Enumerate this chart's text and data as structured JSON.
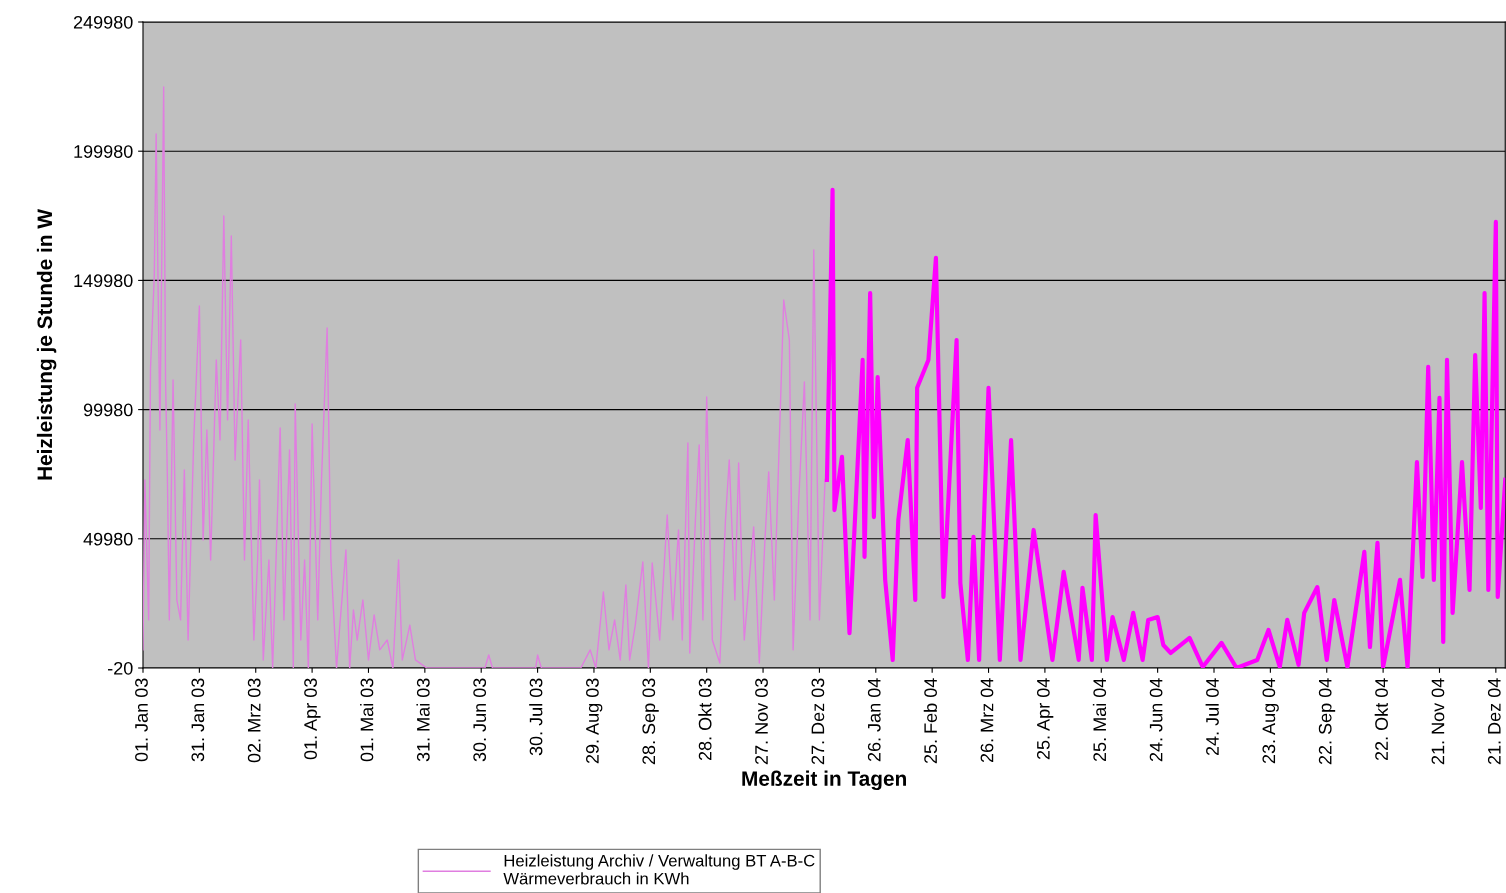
{
  "chart_data": {
    "type": "line",
    "xlabel": "Meßzeit in Tagen",
    "ylabel": "Heizleistung je Stunde in W",
    "xlim": [
      "2003-01-01",
      "2004-12-26"
    ],
    "ylim": [
      -20,
      249980
    ],
    "yticks": [
      -20,
      49980,
      99980,
      149980,
      199980,
      249980
    ],
    "xticks": [
      {
        "value": "2003-01-01",
        "label": "01. Jan 03"
      },
      {
        "value": "2003-01-31",
        "label": "31. Jan 03"
      },
      {
        "value": "2003-03-02",
        "label": "02. Mrz 03"
      },
      {
        "value": "2003-04-01",
        "label": "01. Apr 03"
      },
      {
        "value": "2003-05-01",
        "label": "01. Mai 03"
      },
      {
        "value": "2003-05-31",
        "label": "31. Mai 03"
      },
      {
        "value": "2003-06-30",
        "label": "30. Jun 03"
      },
      {
        "value": "2003-07-30",
        "label": "30. Jul 03"
      },
      {
        "value": "2003-08-29",
        "label": "29. Aug 03"
      },
      {
        "value": "2003-09-28",
        "label": "28. Sep 03"
      },
      {
        "value": "2003-10-28",
        "label": "28. Okt 03"
      },
      {
        "value": "2003-11-27",
        "label": "27. Nov 03"
      },
      {
        "value": "2003-12-27",
        "label": "27. Dez 03"
      },
      {
        "value": "2004-01-26",
        "label": "26. Jan 04"
      },
      {
        "value": "2004-02-25",
        "label": "25. Feb 04"
      },
      {
        "value": "2004-03-26",
        "label": "26. Mrz 04"
      },
      {
        "value": "2004-04-25",
        "label": "25. Apr 04"
      },
      {
        "value": "2004-05-25",
        "label": "25. Mai 04"
      },
      {
        "value": "2004-06-24",
        "label": "24. Jun 04"
      },
      {
        "value": "2004-07-24",
        "label": "24. Jul 04"
      },
      {
        "value": "2004-08-23",
        "label": "23. Aug 04"
      },
      {
        "value": "2004-09-22",
        "label": "22. Sep 04"
      },
      {
        "value": "2004-10-22",
        "label": "22. Okt 04"
      },
      {
        "value": "2004-11-21",
        "label": "21. Nov 04"
      },
      {
        "value": "2004-12-21",
        "label": "21. Dez 04"
      }
    ],
    "grid": "y",
    "legend": "bottom",
    "line_style": "solid",
    "marker": "none",
    "series": [
      {
        "name": "Heizleistung Archiv / Verwaltung BT A-B-C\nWärmeverbrauch in KWh",
        "color": "#e07ee0",
        "x": [
          "2003-01-01",
          "2003-01-02",
          "2003-01-04",
          "2003-01-05",
          "2003-01-07",
          "2003-01-08",
          "2003-01-10",
          "2003-01-12",
          "2003-01-13",
          "2003-01-14",
          "2003-01-15",
          "2003-01-17",
          "2003-01-19",
          "2003-01-21",
          "2003-01-23",
          "2003-01-25",
          "2003-01-28",
          "2003-01-31",
          "2003-02-02",
          "2003-02-04",
          "2003-02-06",
          "2003-02-09",
          "2003-02-11",
          "2003-02-13",
          "2003-02-15",
          "2003-02-17",
          "2003-02-19",
          "2003-02-22",
          "2003-02-24",
          "2003-02-26",
          "2003-03-01",
          "2003-03-03",
          "2003-03-04",
          "2003-03-06",
          "2003-03-09",
          "2003-03-11",
          "2003-03-15",
          "2003-03-17",
          "2003-03-20",
          "2003-03-22",
          "2003-03-23",
          "2003-03-26",
          "2003-03-28",
          "2003-03-30",
          "2003-04-01",
          "2003-04-04",
          "2003-04-06",
          "2003-04-09",
          "2003-04-11",
          "2003-04-14",
          "2003-04-16",
          "2003-04-19",
          "2003-04-21",
          "2003-04-23",
          "2003-04-25",
          "2003-04-28",
          "2003-05-01",
          "2003-05-04",
          "2003-05-07",
          "2003-05-11",
          "2003-05-14",
          "2003-05-17",
          "2003-05-19",
          "2003-05-23",
          "2003-05-26",
          "2003-06-01",
          "2003-07-02",
          "2003-07-04",
          "2003-07-06",
          "2003-07-29",
          "2003-07-30",
          "2003-08-01",
          "2003-08-22",
          "2003-08-27",
          "2003-08-30",
          "2003-09-03",
          "2003-09-06",
          "2003-09-09",
          "2003-09-12",
          "2003-09-15",
          "2003-09-17",
          "2003-09-20",
          "2003-09-24",
          "2003-09-27",
          "2003-09-29",
          "2003-10-03",
          "2003-10-07",
          "2003-10-10",
          "2003-10-13",
          "2003-10-15",
          "2003-10-18",
          "2003-10-19",
          "2003-10-22",
          "2003-10-24",
          "2003-10-26",
          "2003-10-28",
          "2003-10-31",
          "2003-11-04",
          "2003-11-07",
          "2003-11-09",
          "2003-11-12",
          "2003-11-14",
          "2003-11-17",
          "2003-11-22",
          "2003-11-25",
          "2003-11-28",
          "2003-11-30",
          "2003-12-03",
          "2003-12-08",
          "2003-12-11",
          "2003-12-13",
          "2003-12-16",
          "2003-12-19",
          "2003-12-22",
          "2003-12-24",
          "2003-12-27",
          "2003-12-30"
        ],
        "values": [
          7000,
          72800,
          18600,
          116000,
          151700,
          206700,
          92100,
          224800,
          111500,
          72800,
          18600,
          111500,
          26300,
          18600,
          76600,
          10800,
          88200,
          140100,
          49500,
          92100,
          41800,
          119200,
          88200,
          174900,
          96000,
          167200,
          80500,
          126900,
          41800,
          96000,
          10800,
          41800,
          72800,
          3100,
          41800,
          0,
          92900,
          18600,
          84400,
          0,
          102200,
          10800,
          41800,
          0,
          94400,
          18600,
          72800,
          131600,
          41800,
          0,
          18600,
          45700,
          0,
          22400,
          10800,
          26300,
          3100,
          20500,
          7000,
          10800,
          0,
          41800,
          3100,
          16600,
          3100,
          0,
          0,
          5000,
          0,
          0,
          5000,
          0,
          0,
          7000,
          0,
          29400,
          7000,
          18600,
          3100,
          32100,
          3100,
          16600,
          41000,
          0,
          40600,
          10800,
          59200,
          18600,
          53400,
          10800,
          87100,
          5800,
          57300,
          86300,
          18600,
          104900,
          10800,
          1900,
          57300,
          80500,
          26300,
          79300,
          10800,
          54600,
          1900,
          49500,
          75900,
          26300,
          142400,
          126900,
          7000,
          65000,
          110700,
          18600,
          161800,
          18600,
          72800
        ]
      },
      {
        "color": "#ff00ff",
        "x": [
          "2003-12-31",
          "2004-01-03",
          "2004-01-04",
          "2004-01-08",
          "2004-01-12",
          "2004-01-19",
          "2004-01-20",
          "2004-01-23",
          "2004-01-25",
          "2004-01-27",
          "2004-01-31",
          "2004-02-04",
          "2004-02-07",
          "2004-02-12",
          "2004-02-16",
          "2004-02-17",
          "2004-02-23",
          "2004-02-27",
          "2004-03-02",
          "2004-03-09",
          "2004-03-11",
          "2004-03-15",
          "2004-03-18",
          "2004-03-21",
          "2004-03-26",
          "2004-04-01",
          "2004-04-07",
          "2004-04-12",
          "2004-04-19",
          "2004-04-29",
          "2004-05-05",
          "2004-05-13",
          "2004-05-15",
          "2004-05-20",
          "2004-05-22",
          "2004-05-28",
          "2004-05-31",
          "2004-06-06",
          "2004-06-11",
          "2004-06-16",
          "2004-06-19",
          "2004-06-24",
          "2004-06-27",
          "2004-07-01",
          "2004-07-11",
          "2004-07-18",
          "2004-07-28",
          "2004-08-05",
          "2004-08-16",
          "2004-08-22",
          "2004-08-28",
          "2004-09-01",
          "2004-09-07",
          "2004-09-10",
          "2004-09-17",
          "2004-09-22",
          "2004-09-26",
          "2004-10-03",
          "2004-10-12",
          "2004-10-15",
          "2004-10-19",
          "2004-10-22",
          "2004-10-31",
          "2004-11-04",
          "2004-11-09",
          "2004-11-12",
          "2004-11-15",
          "2004-11-18",
          "2004-11-21",
          "2004-11-23",
          "2004-11-25",
          "2004-11-28",
          "2004-12-03",
          "2004-12-07",
          "2004-12-10",
          "2004-12-13",
          "2004-12-15",
          "2004-12-17",
          "2004-12-21",
          "2004-12-22",
          "2004-12-26"
        ],
        "values": [
          72800,
          185000,
          61100,
          81700,
          13500,
          119200,
          43000,
          145100,
          58400,
          112600,
          34100,
          3100,
          57300,
          88200,
          26300,
          108400,
          119200,
          158700,
          27500,
          126900,
          32900,
          3100,
          50700,
          3100,
          108400,
          3100,
          88200,
          3100,
          53400,
          3100,
          37200,
          3100,
          31000,
          3100,
          59200,
          3100,
          19700,
          3100,
          21300,
          3100,
          18600,
          19700,
          8900,
          5800,
          11600,
          400,
          9700,
          0,
          3100,
          14700,
          400,
          18600,
          1200,
          21300,
          31300,
          3100,
          26300,
          400,
          44900,
          8100,
          48400,
          400,
          34100,
          400,
          79700,
          35200,
          116500,
          34100,
          104500,
          10100,
          119200,
          21300,
          79700,
          30200,
          121100,
          61900,
          145100,
          30200,
          172600,
          27500,
          72800
        ]
      }
    ]
  }
}
